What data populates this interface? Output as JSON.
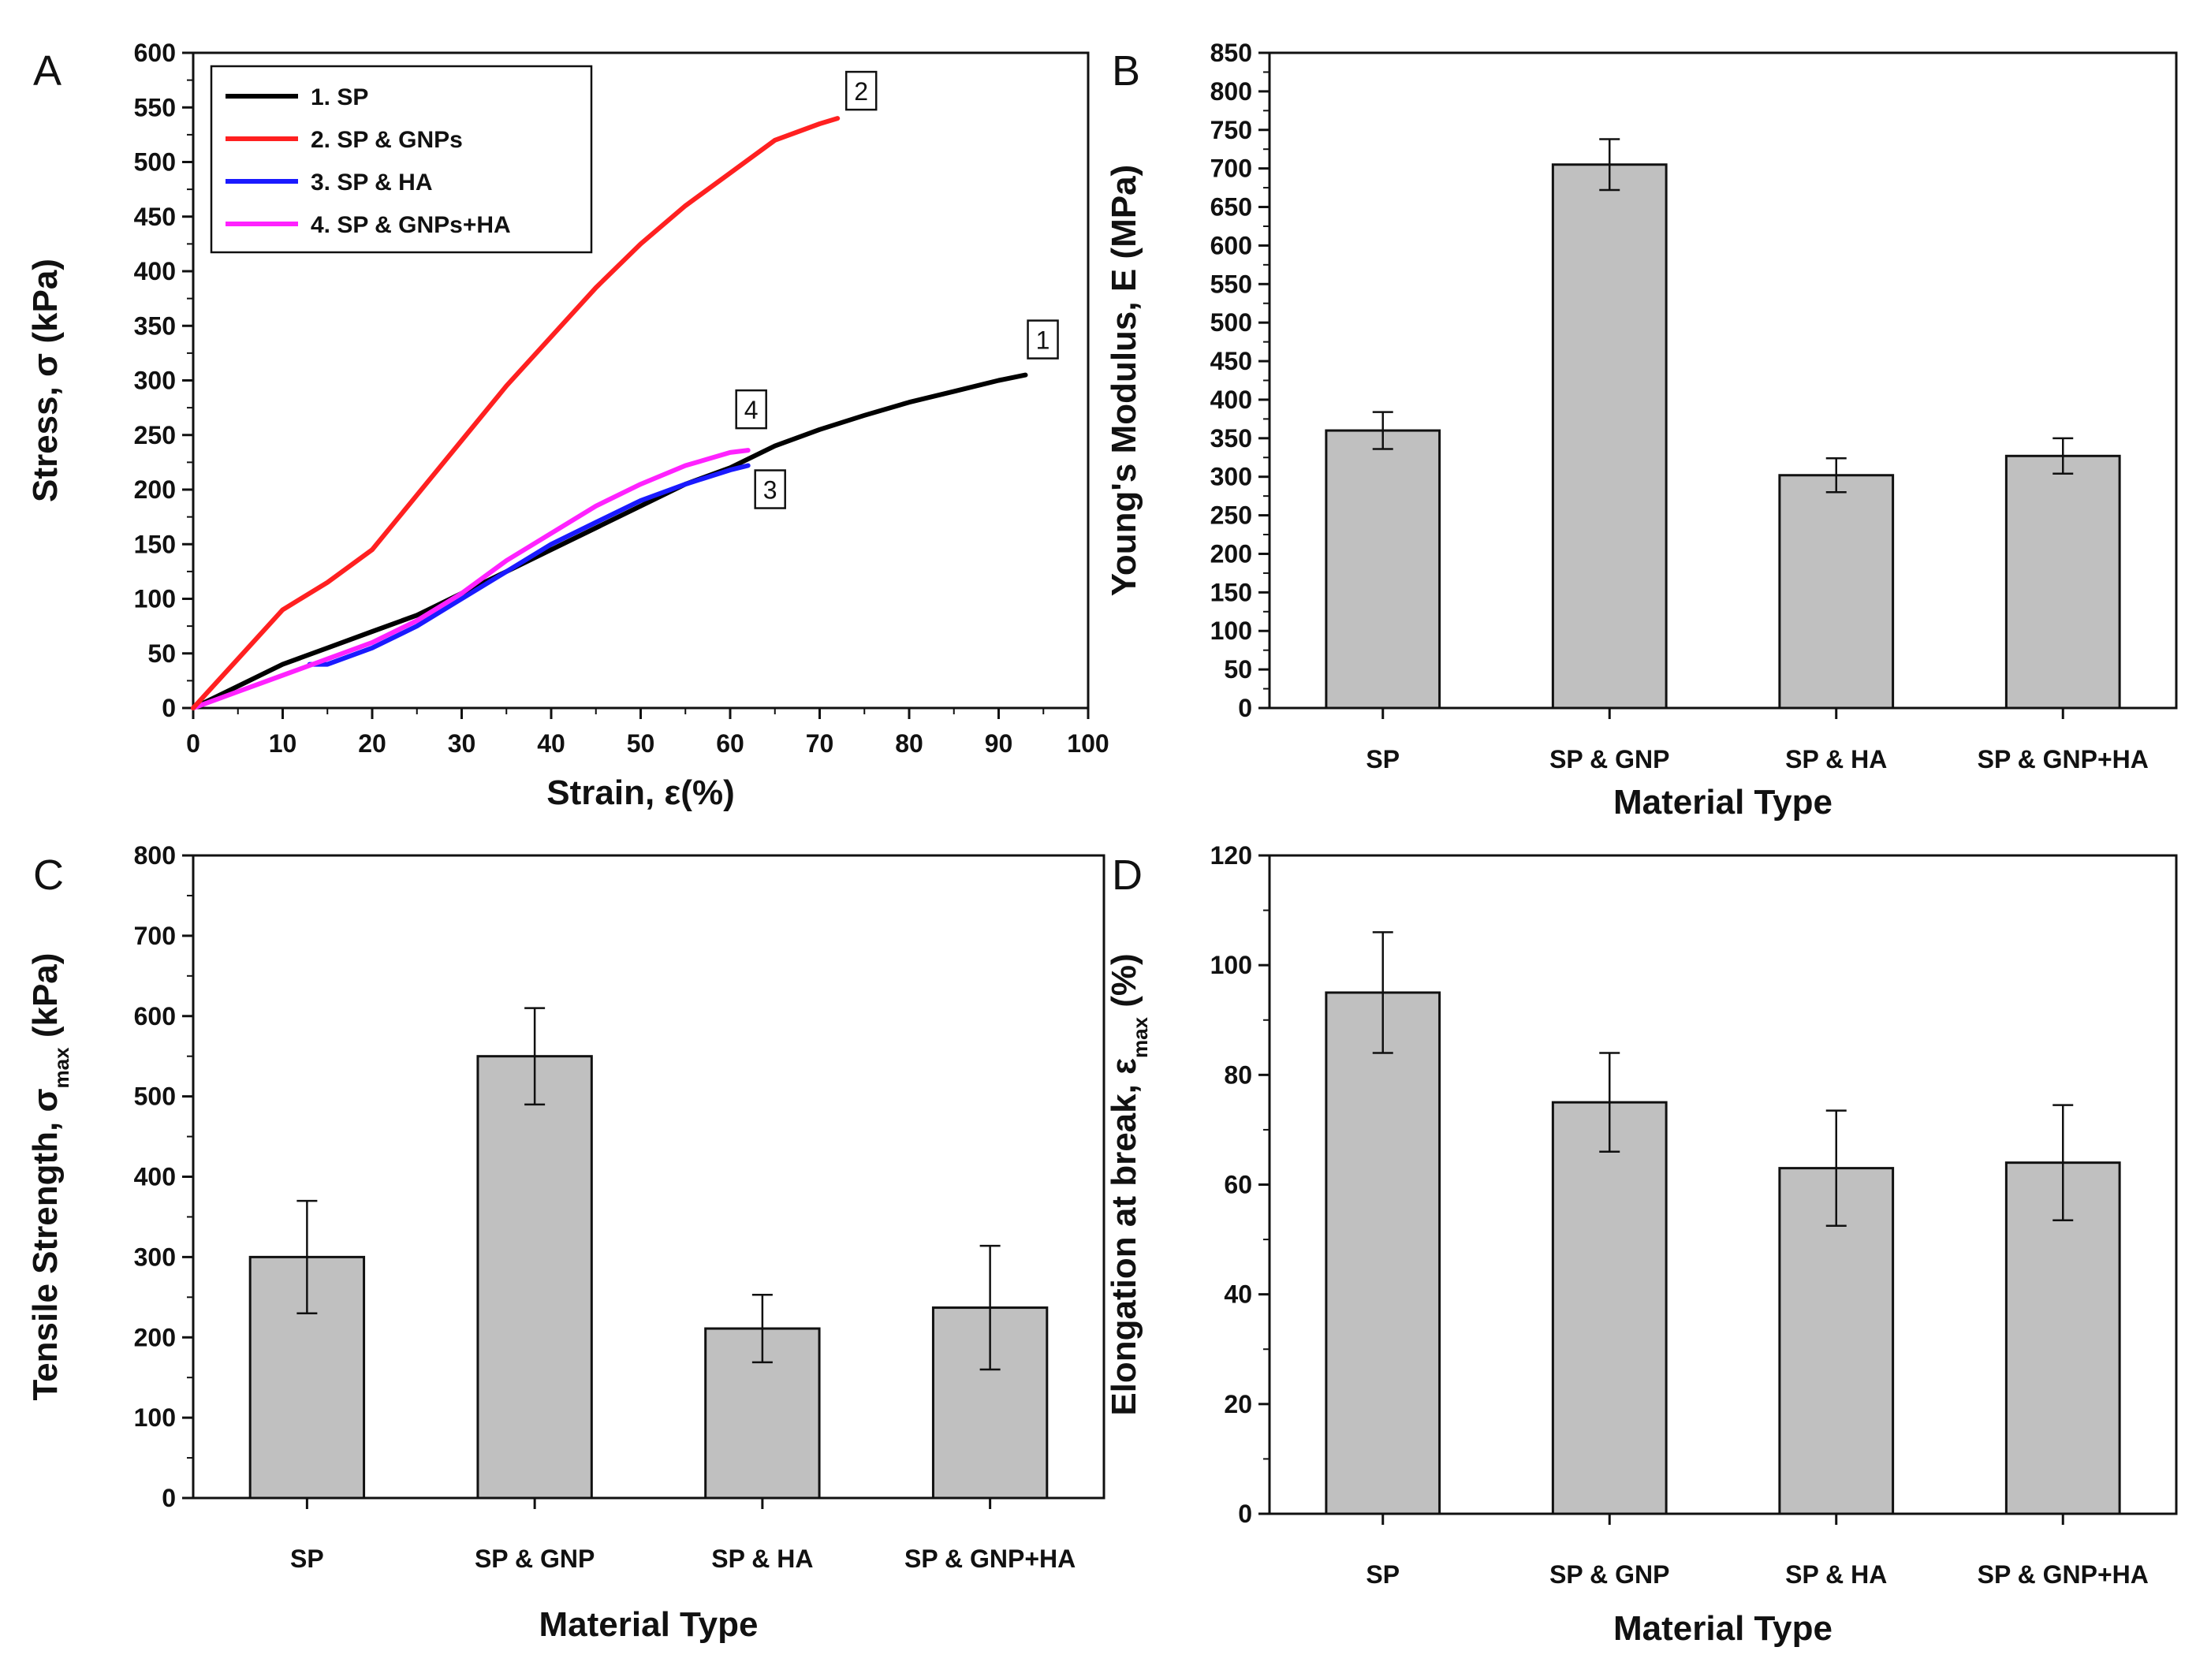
{
  "chart_data": [
    {
      "panel": "A",
      "type": "line",
      "xlabel": "Strain, ε(%)",
      "ylabel": "Stress, σ (kPa)",
      "xlim": [
        0,
        100
      ],
      "ylim": [
        0,
        600
      ],
      "xticks": [
        0,
        10,
        20,
        30,
        40,
        50,
        60,
        70,
        80,
        90,
        100
      ],
      "yticks": [
        0,
        50,
        100,
        150,
        200,
        250,
        300,
        350,
        400,
        450,
        500,
        550,
        600
      ],
      "legend_position": "top-left",
      "series": [
        {
          "name": "1. SP",
          "color": "#000000",
          "label": "1",
          "x": [
            0,
            5,
            10,
            15,
            20,
            25,
            30,
            35,
            40,
            45,
            50,
            55,
            60,
            65,
            70,
            75,
            80,
            85,
            90,
            93
          ],
          "y": [
            0,
            20,
            40,
            55,
            70,
            85,
            105,
            125,
            145,
            165,
            185,
            205,
            220,
            240,
            255,
            268,
            280,
            290,
            300,
            305
          ]
        },
        {
          "name": "2. SP & GNPs",
          "color": "#ff2020",
          "label": "2",
          "x": [
            0,
            5,
            10,
            15,
            20,
            25,
            30,
            35,
            40,
            45,
            50,
            55,
            60,
            65,
            70,
            72
          ],
          "y": [
            0,
            45,
            90,
            115,
            145,
            195,
            245,
            295,
            340,
            385,
            425,
            460,
            490,
            520,
            535,
            540
          ]
        },
        {
          "name": "3. SP & HA",
          "color": "#1a1aff",
          "label": "3",
          "x": [
            13,
            15,
            20,
            25,
            30,
            35,
            40,
            45,
            50,
            55,
            60,
            62
          ],
          "y": [
            40,
            40,
            55,
            75,
            100,
            125,
            150,
            170,
            190,
            205,
            218,
            222
          ]
        },
        {
          "name": "4. SP & GNPs+HA",
          "color": "#ff22ff",
          "label": "4",
          "x": [
            0,
            5,
            10,
            15,
            20,
            25,
            30,
            35,
            40,
            45,
            50,
            55,
            60,
            62
          ],
          "y": [
            0,
            15,
            30,
            45,
            60,
            80,
            105,
            135,
            160,
            185,
            205,
            222,
            234,
            236
          ]
        }
      ]
    },
    {
      "panel": "B",
      "type": "bar",
      "xlabel": "Material Type",
      "ylabel": "Young's Modulus, E (MPa)",
      "ylim": [
        0,
        850
      ],
      "yticks": [
        0,
        50,
        100,
        150,
        200,
        250,
        300,
        350,
        400,
        450,
        500,
        550,
        600,
        650,
        700,
        750,
        800,
        850
      ],
      "categories": [
        "SP",
        "SP & GNP",
        "SP & HA",
        "SP & GNP+HA"
      ],
      "values": [
        360,
        705,
        302,
        327
      ],
      "errors": [
        24,
        33,
        22,
        23
      ],
      "bar_color": "#c0c0c0"
    },
    {
      "panel": "C",
      "type": "bar",
      "xlabel": "Material Type",
      "ylabel": "Tensile Strength, σmax (kPa)",
      "ylabel_main": "Tensile Strength, σ",
      "ylabel_sub": "max",
      "ylabel_tail": " (kPa)",
      "ylim": [
        0,
        800
      ],
      "yticks": [
        0,
        100,
        200,
        300,
        400,
        500,
        600,
        700,
        800
      ],
      "categories": [
        "SP",
        "SP & GNP",
        "SP & HA",
        "SP & GNP+HA"
      ],
      "values": [
        300,
        550,
        211,
        237
      ],
      "errors": [
        70,
        60,
        42,
        77
      ],
      "bar_color": "#c0c0c0"
    },
    {
      "panel": "D",
      "type": "bar",
      "xlabel": "Material Type",
      "ylabel": "Elongation at break, εmax (%)",
      "ylabel_main": "Elongation at break, ε",
      "ylabel_sub": "max",
      "ylabel_tail": " (%)",
      "ylim": [
        0,
        120
      ],
      "yticks": [
        0,
        20,
        40,
        60,
        80,
        100,
        120
      ],
      "categories": [
        "SP",
        "SP & GNP",
        "SP & HA",
        "SP & GNP+HA"
      ],
      "values": [
        95,
        75,
        63,
        64
      ],
      "errors": [
        11,
        9,
        10.5,
        10.5
      ],
      "bar_color": "#c0c0c0"
    }
  ]
}
